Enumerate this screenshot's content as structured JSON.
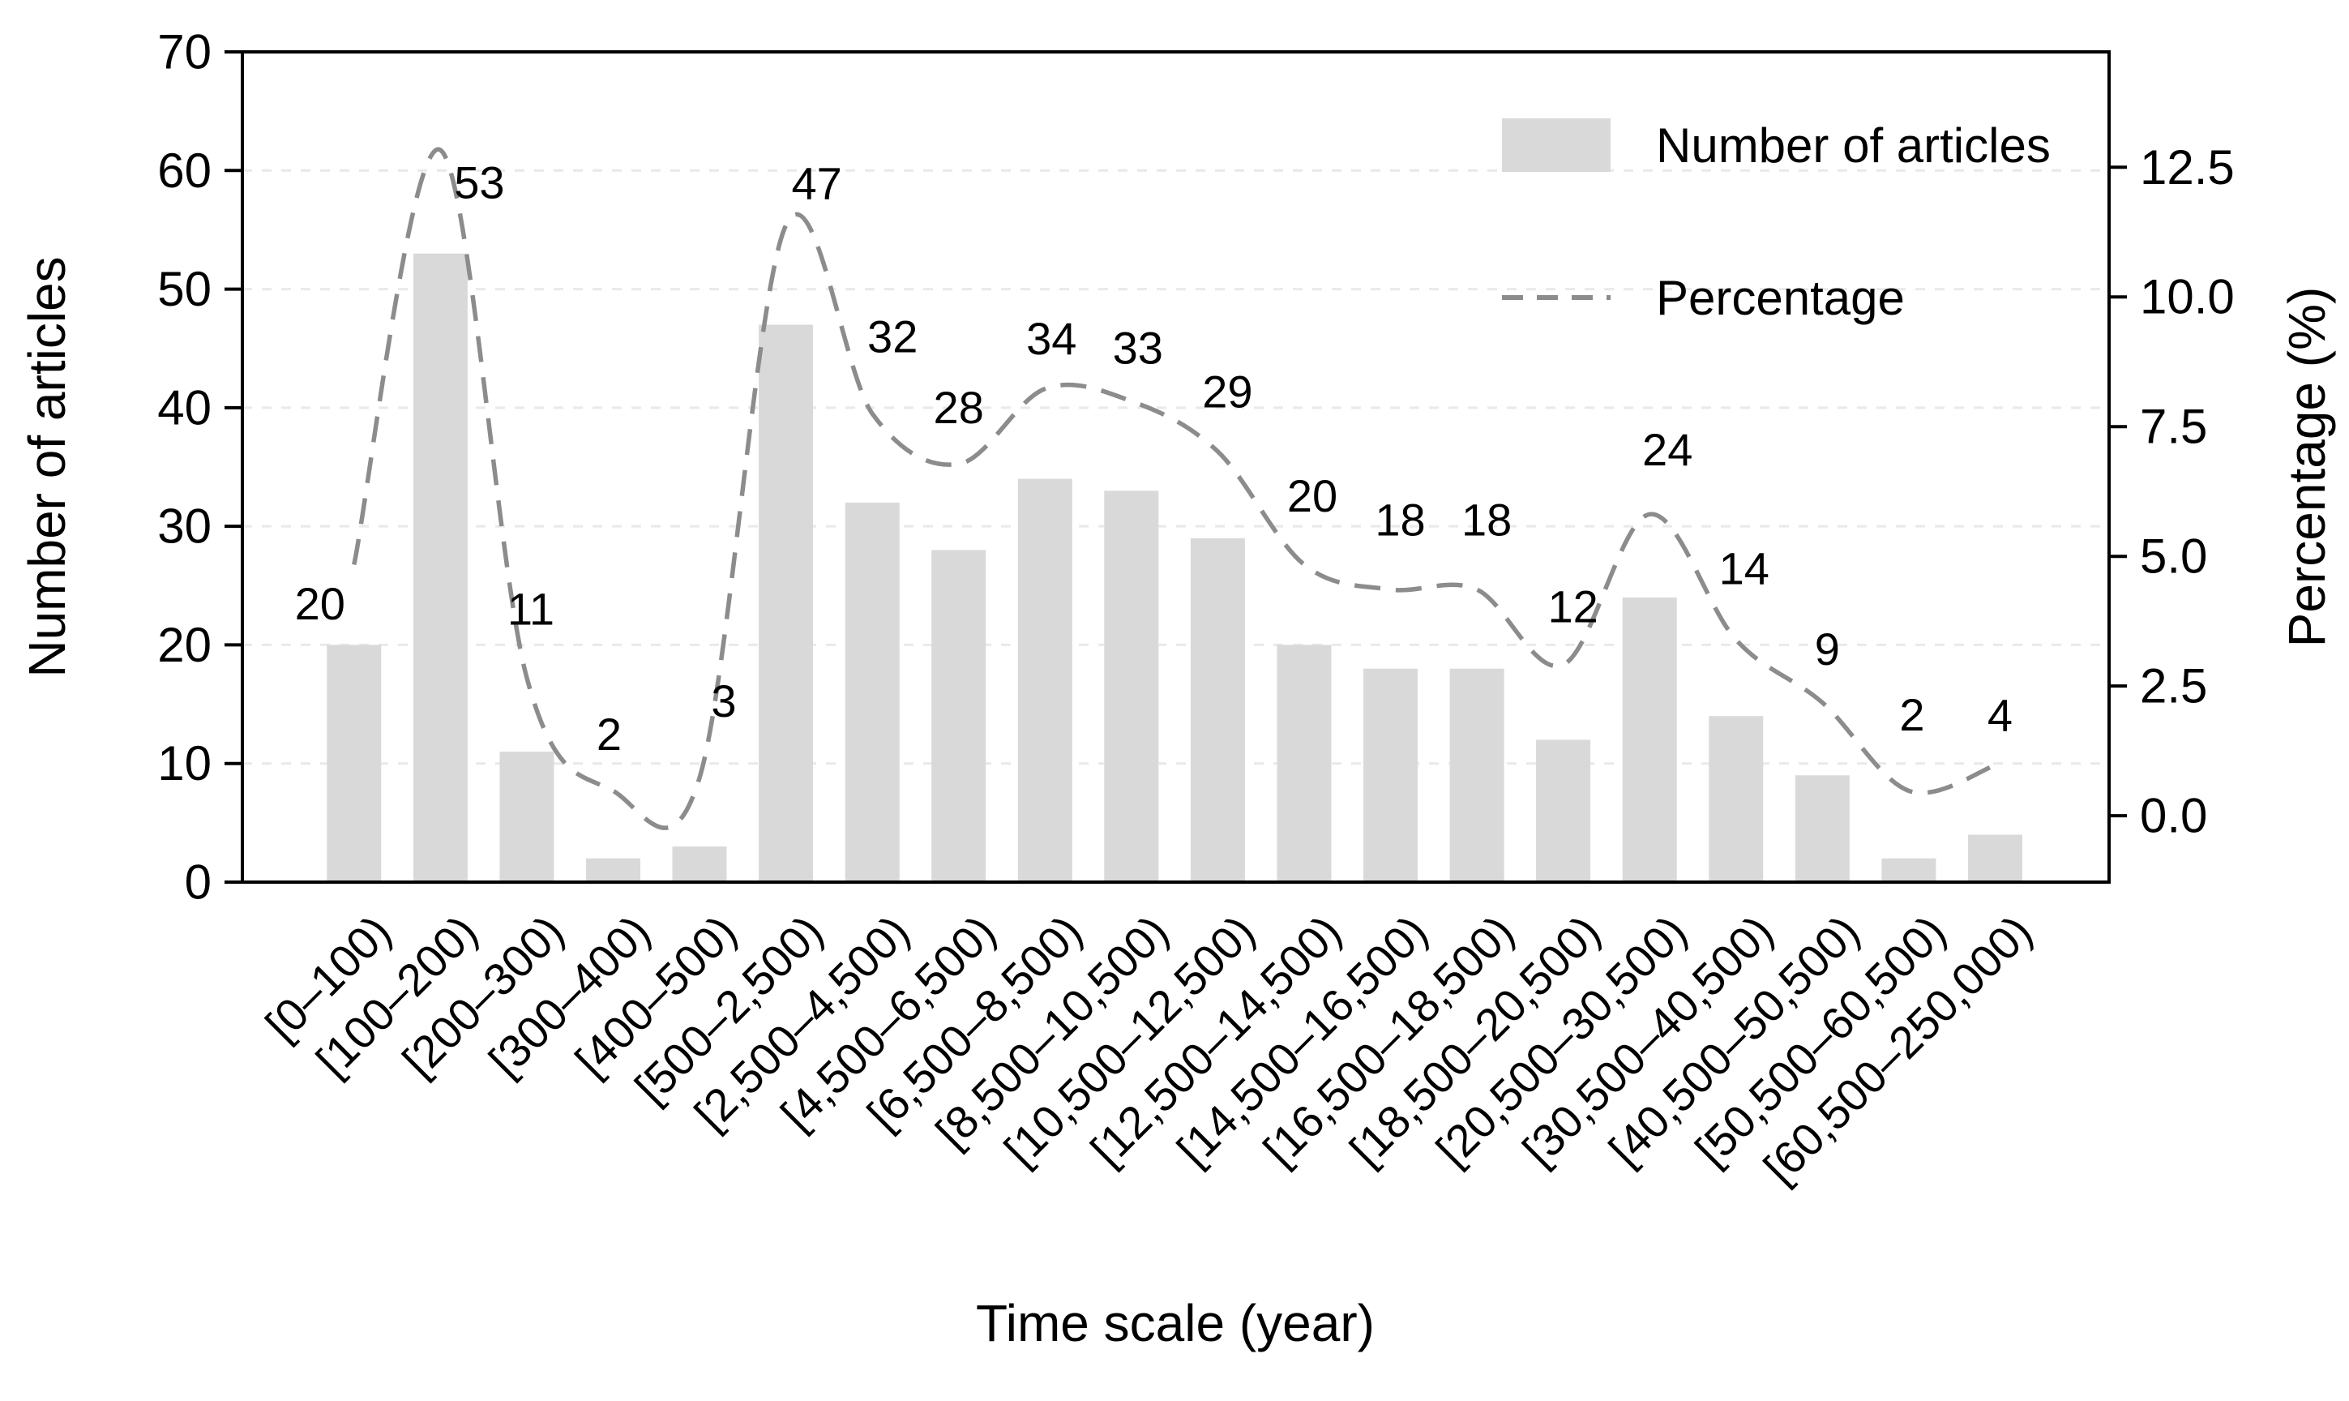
{
  "chart_data": {
    "type": "bar",
    "subtype": "bar-with-dashed-percentage-line",
    "categories": [
      "[0–100)",
      "[100–200)",
      "[200–300)",
      "[300–400)",
      "[400–500)",
      "[500–2,500)",
      "[2,500–4,500)",
      "[4,500–6,500)",
      "[6,500–8,500)",
      "[8,500–10,500)",
      "[10,500–12,500)",
      "[12,500–14,500)",
      "[14,500–16,500)",
      "[16,500–18,500)",
      "[18,500–20,500)",
      "[20,500–30,500)",
      "[30,500–40,500)",
      "[40,500–50,500)",
      "[50,500–60,500)",
      "[60,500–250,000)"
    ],
    "series": [
      {
        "name": "Number of articles",
        "type": "bar",
        "axis": "left",
        "values": [
          20,
          53,
          11,
          2,
          3,
          47,
          32,
          28,
          34,
          33,
          29,
          20,
          18,
          18,
          12,
          24,
          14,
          9,
          2,
          4
        ]
      },
      {
        "name": "Percentage",
        "type": "dashed-line",
        "axis": "right",
        "values": [
          4.84,
          12.83,
          2.66,
          0.48,
          0.73,
          11.38,
          7.75,
          6.78,
          8.23,
          7.99,
          7.02,
          4.84,
          4.36,
          4.36,
          2.91,
          5.81,
          3.39,
          2.18,
          0.48,
          0.97
        ]
      }
    ],
    "bar_labels": [
      "20",
      "53",
      "11",
      "2",
      "3",
      "47",
      "32",
      "28",
      "34",
      "33",
      "29",
      "20",
      "18",
      "18",
      "12",
      "24",
      "14",
      "9",
      "2",
      "4"
    ],
    "title": "",
    "xlabel": "Time scale (year)",
    "ylabel_left": "Number of articles",
    "ylabel_right": "Percentage (%)",
    "left_ticks": [
      0,
      10,
      20,
      30,
      40,
      50,
      60,
      70
    ],
    "right_ticks": [
      "0.0",
      "2.5",
      "5.0",
      "7.5",
      "10.0",
      "12.5"
    ],
    "ylim_left": [
      0,
      70
    ],
    "right_axis_map": {
      "zero_y_in_left_units": 5.6,
      "left_units_per_percent": 4.374
    },
    "grid": "horizontal-dashed-at-left-ticks",
    "legend_position": "top-right-inside",
    "xtick_rotation_deg": 45,
    "colors": {
      "bar": "#d9d9d9",
      "line": "#8c8c8c",
      "grid": "#e9e9e9",
      "axis": "#000000",
      "text": "#000000",
      "background": "#ffffff"
    }
  },
  "legend": {
    "items": [
      {
        "label": "Number of articles",
        "swatch": "bar"
      },
      {
        "label": "Percentage",
        "swatch": "dashed-line"
      }
    ]
  }
}
